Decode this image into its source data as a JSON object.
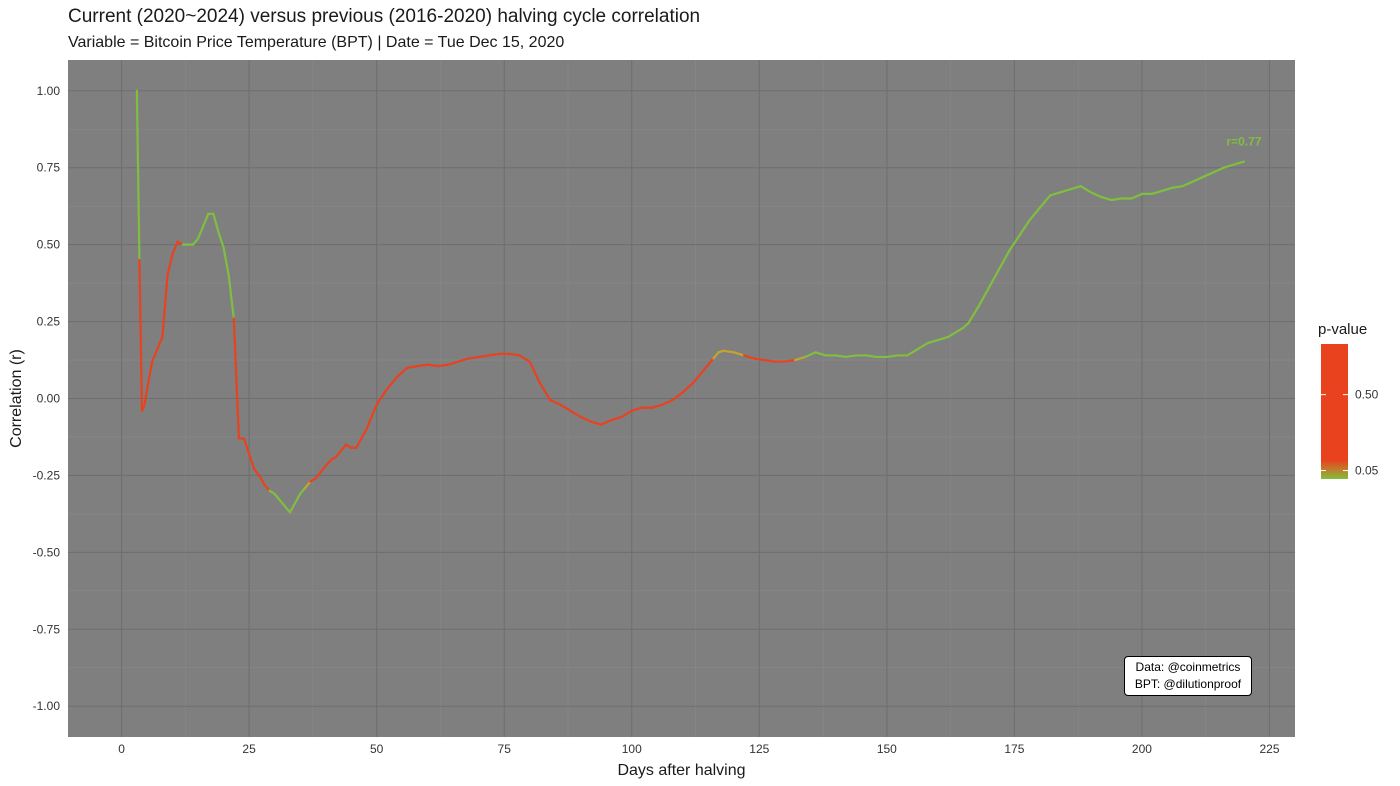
{
  "header": {
    "title": "Current (2020~2024) versus previous (2016-2020) halving cycle correlation",
    "subtitle": "Variable = Bitcoin Price Temperature (BPT) | Date = Tue Dec 15, 2020"
  },
  "note": {
    "line1": "Data: @coinmetrics",
    "line2": "BPT: @dilutionproof"
  },
  "colors": {
    "panel_bg": "#7f7f7f",
    "significant": "#7fbf3f",
    "not_significant": "#e8421e"
  },
  "chart_data": {
    "type": "line",
    "title": "Current (2020~2024) versus previous (2016-2020) halving cycle correlation",
    "subtitle": "Variable = Bitcoin Price Temperature (BPT) | Date = Tue Dec 15, 2020",
    "xlabel": "Days after halving",
    "ylabel": "Correlation (r)",
    "xlim": [
      -10.5,
      230
    ],
    "ylim": [
      -1.1,
      1.1
    ],
    "x_ticks": [
      0,
      25,
      50,
      75,
      100,
      125,
      150,
      175,
      200,
      225
    ],
    "y_ticks": [
      -1,
      -0.75,
      -0.5,
      -0.25,
      0,
      0.25,
      0.5,
      0.75,
      1
    ],
    "y_tick_labels": [
      "-1.00",
      "-0.75",
      "-0.50",
      "-0.25",
      "0.00",
      "0.25",
      "0.50",
      "0.75",
      "1.00"
    ],
    "grid": true,
    "legend": {
      "title": "p-value",
      "position": "right",
      "labels": [
        "0.50",
        "0.05"
      ],
      "label_values": [
        0.5,
        0.05
      ],
      "range": [
        0,
        0.8
      ]
    },
    "end_label": "r=0.77",
    "series": [
      {
        "x": [
          3,
          3.5,
          4,
          4.5,
          5,
          6,
          7,
          8,
          9,
          10,
          11,
          12,
          13,
          14,
          15,
          16,
          17,
          18,
          19,
          20,
          21,
          22,
          23,
          24,
          25,
          26,
          27,
          28,
          29,
          30,
          31,
          32,
          33,
          34,
          35,
          36,
          37,
          38,
          39,
          40,
          41,
          42,
          43,
          44,
          45,
          46,
          47,
          48,
          49,
          50,
          52,
          54,
          56,
          58,
          60,
          62,
          64,
          66,
          68,
          70,
          72,
          74,
          76,
          78,
          80,
          82,
          84,
          86,
          88,
          90,
          92,
          94,
          96,
          98,
          100,
          102,
          104,
          106,
          108,
          110,
          112,
          114,
          116,
          117,
          118,
          120,
          122,
          124,
          126,
          128,
          130,
          132,
          134,
          136,
          138,
          140,
          142,
          144,
          146,
          148,
          150,
          152,
          154,
          156,
          158,
          160,
          162,
          164,
          165,
          166,
          168,
          170,
          172,
          174,
          176,
          178,
          180,
          182,
          184,
          186,
          188,
          190,
          192,
          194,
          196,
          198,
          200,
          202,
          204,
          206,
          208,
          210,
          212,
          214,
          216,
          218,
          220
        ],
        "y": [
          1.0,
          0.45,
          -0.04,
          -0.02,
          0.03,
          0.12,
          0.16,
          0.2,
          0.4,
          0.47,
          0.51,
          0.5,
          0.5,
          0.5,
          0.52,
          0.56,
          0.6,
          0.6,
          0.54,
          0.49,
          0.4,
          0.26,
          -0.13,
          -0.13,
          -0.18,
          -0.23,
          -0.25,
          -0.28,
          -0.3,
          -0.31,
          -0.33,
          -0.35,
          -0.37,
          -0.34,
          -0.31,
          -0.29,
          -0.27,
          -0.26,
          -0.24,
          -0.22,
          -0.2,
          -0.19,
          -0.17,
          -0.15,
          -0.16,
          -0.16,
          -0.13,
          -0.1,
          -0.06,
          -0.02,
          0.03,
          0.07,
          0.1,
          0.105,
          0.11,
          0.105,
          0.11,
          0.12,
          0.13,
          0.135,
          0.14,
          0.145,
          0.145,
          0.14,
          0.12,
          0.05,
          -0.005,
          -0.02,
          -0.04,
          -0.06,
          -0.075,
          -0.085,
          -0.07,
          -0.06,
          -0.04,
          -0.03,
          -0.03,
          -0.02,
          -0.005,
          0.02,
          0.05,
          0.09,
          0.13,
          0.15,
          0.155,
          0.15,
          0.14,
          0.13,
          0.125,
          0.12,
          0.12,
          0.125,
          0.135,
          0.15,
          0.14,
          0.14,
          0.135,
          0.14,
          0.14,
          0.135,
          0.135,
          0.14,
          0.14,
          0.16,
          0.18,
          0.19,
          0.2,
          0.22,
          0.23,
          0.245,
          0.3,
          0.36,
          0.42,
          0.48,
          0.53,
          0.58,
          0.62,
          0.66,
          0.67,
          0.68,
          0.69,
          0.67,
          0.655,
          0.645,
          0.65,
          0.65,
          0.665,
          0.665,
          0.675,
          0.685,
          0.69,
          0.705,
          0.72,
          0.735,
          0.75,
          0.76,
          0.77
        ],
        "p": [
          0.01,
          0.02,
          0.4,
          0.6,
          0.7,
          0.7,
          0.7,
          0.7,
          0.7,
          0.7,
          0.6,
          0.04,
          0.03,
          0.03,
          0.03,
          0.02,
          0.02,
          0.02,
          0.02,
          0.03,
          0.03,
          0.04,
          0.7,
          0.7,
          0.7,
          0.7,
          0.6,
          0.4,
          0.06,
          0.04,
          0.03,
          0.02,
          0.02,
          0.02,
          0.03,
          0.05,
          0.1,
          0.4,
          0.6,
          0.7,
          0.7,
          0.7,
          0.7,
          0.7,
          0.7,
          0.7,
          0.7,
          0.7,
          0.7,
          0.7,
          0.7,
          0.7,
          0.7,
          0.7,
          0.7,
          0.7,
          0.7,
          0.7,
          0.7,
          0.7,
          0.7,
          0.7,
          0.7,
          0.7,
          0.7,
          0.7,
          0.7,
          0.7,
          0.7,
          0.7,
          0.7,
          0.7,
          0.7,
          0.7,
          0.7,
          0.7,
          0.7,
          0.7,
          0.7,
          0.7,
          0.7,
          0.6,
          0.3,
          0.08,
          0.05,
          0.1,
          0.2,
          0.3,
          0.4,
          0.5,
          0.4,
          0.1,
          0.05,
          0.03,
          0.03,
          0.03,
          0.02,
          0.02,
          0.02,
          0.02,
          0.02,
          0.02,
          0.01,
          0.01,
          0.01,
          0.01,
          0.01,
          0.01,
          0.01,
          0.01,
          0.01,
          0.01,
          0.01,
          0.01,
          0.01,
          0.01,
          0.01,
          0.01,
          0.01,
          0.01,
          0.01,
          0.01,
          0.01,
          0.01,
          0.01,
          0.01,
          0.01,
          0.01,
          0.01,
          0.01,
          0.01,
          0.01,
          0.01,
          0.01,
          0.01,
          0.01,
          0.01
        ]
      }
    ]
  }
}
